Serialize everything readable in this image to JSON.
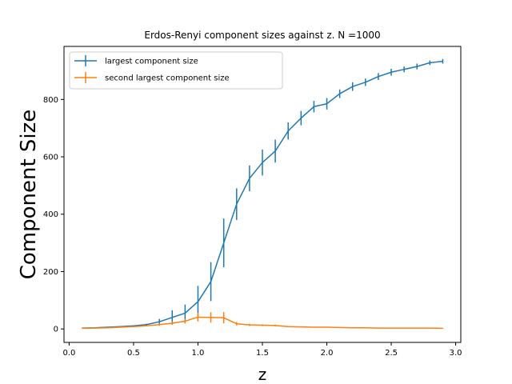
{
  "chart_data": {
    "type": "line",
    "title": "Erdos-Renyi component sizes against z. N =1000",
    "xlabel": "z",
    "ylabel": "Component Size",
    "xlim": [
      -0.04,
      3.04
    ],
    "ylim": [
      -47,
      985
    ],
    "xticks": [
      0.0,
      0.5,
      1.0,
      1.5,
      2.0,
      2.5,
      3.0
    ],
    "xtick_labels": [
      "0.0",
      "0.5",
      "1.0",
      "1.5",
      "2.0",
      "2.5",
      "3.0"
    ],
    "yticks": [
      0,
      200,
      400,
      600,
      800
    ],
    "ytick_labels": [
      "0",
      "200",
      "400",
      "600",
      "800"
    ],
    "grid": false,
    "legend_position": "top-left",
    "x": [
      0.1,
      0.2,
      0.3,
      0.4,
      0.5,
      0.6,
      0.7,
      0.8,
      0.9,
      1.0,
      1.1,
      1.2,
      1.3,
      1.4,
      1.5,
      1.6,
      1.7,
      1.8,
      1.9,
      2.0,
      2.1,
      2.2,
      2.3,
      2.4,
      2.5,
      2.6,
      2.7,
      2.8,
      2.9
    ],
    "series": [
      {
        "name": "largest component size",
        "color": "#1f77b4",
        "values": [
          3,
          4,
          6,
          8,
          11,
          15,
          25,
          40,
          55,
          95,
          165,
          300,
          435,
          525,
          580,
          620,
          690,
          735,
          775,
          785,
          820,
          845,
          860,
          880,
          895,
          905,
          915,
          928,
          933
        ],
        "errors": [
          0.5,
          0.5,
          1,
          1,
          2,
          3,
          10,
          25,
          30,
          55,
          68,
          85,
          55,
          45,
          45,
          40,
          30,
          25,
          20,
          20,
          15,
          15,
          13,
          12,
          12,
          10,
          10,
          8,
          8
        ]
      },
      {
        "name": "second largest component size",
        "color": "#ff7f0e",
        "values": [
          2,
          3,
          4,
          6,
          8,
          11,
          15,
          20,
          27,
          41,
          40,
          39,
          18,
          14,
          13,
          12,
          8,
          7,
          6,
          6,
          5,
          4,
          4,
          3,
          3,
          3,
          3,
          3,
          2
        ],
        "errors": [
          0.5,
          0.5,
          1,
          1,
          2,
          2,
          4,
          6,
          8,
          15,
          18,
          20,
          6,
          4,
          3,
          3,
          2,
          1,
          1,
          1,
          1,
          1,
          1,
          1,
          1,
          1,
          1,
          1,
          1
        ]
      }
    ]
  }
}
